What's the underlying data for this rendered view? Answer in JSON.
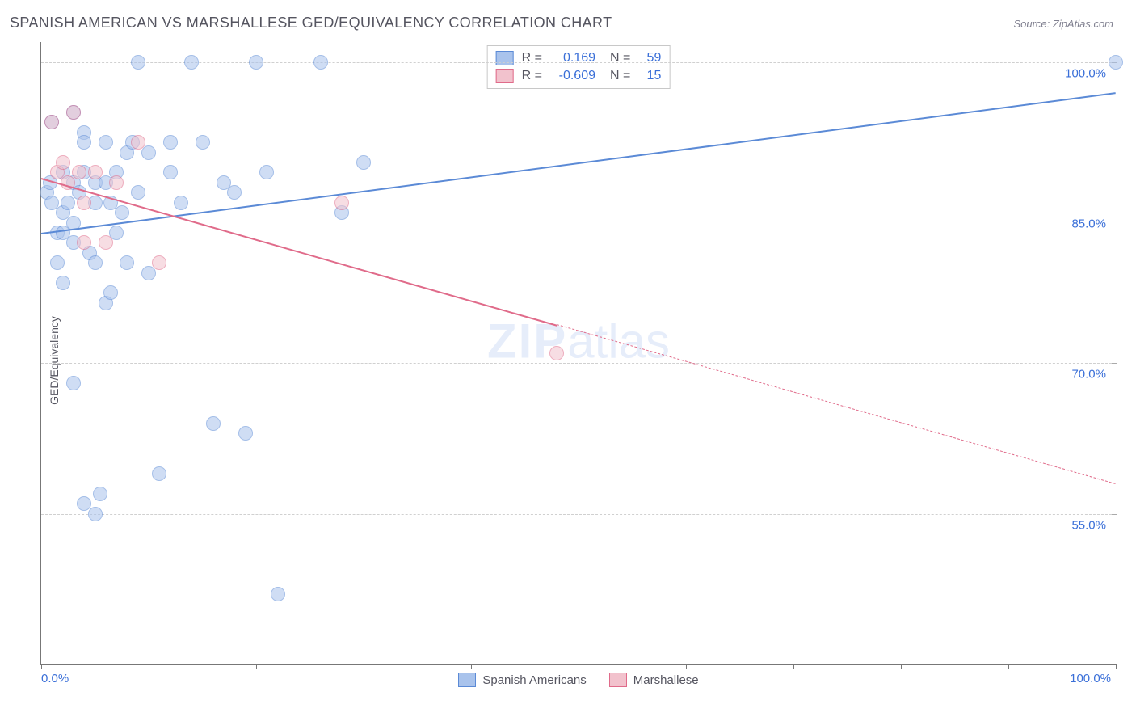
{
  "title": "SPANISH AMERICAN VS MARSHALLESE GED/EQUIVALENCY CORRELATION CHART",
  "source": "Source: ZipAtlas.com",
  "ylabel": "GED/Equivalency",
  "watermark_a": "ZIP",
  "watermark_b": "atlas",
  "chart": {
    "type": "scatter",
    "plot_bg": "#ffffff",
    "grid_color": "#d0d0d0",
    "axis_color": "#777777",
    "xlim": [
      0,
      100
    ],
    "ylim": [
      40,
      102
    ],
    "y_ticks": [
      55,
      70,
      85,
      100
    ],
    "y_tick_labels": [
      "55.0%",
      "70.0%",
      "85.0%",
      "100.0%"
    ],
    "x_ticks_minor_step": 10,
    "x_labels": [
      {
        "x": 0,
        "text": "0.0%",
        "align": "left"
      },
      {
        "x": 100,
        "text": "100.0%",
        "align": "right"
      }
    ],
    "ytick_color": "#3a6fd8",
    "marker_radius": 8,
    "marker_opacity": 0.55,
    "series": [
      {
        "name": "Spanish Americans",
        "color_fill": "#a9c3ec",
        "color_stroke": "#5b8ad6",
        "R": "0.169",
        "N": "59",
        "trend": {
          "y_at_x0": 83,
          "y_at_x100": 97,
          "solid_until_x": 100
        },
        "points": [
          [
            0.5,
            87
          ],
          [
            0.8,
            88
          ],
          [
            1,
            94
          ],
          [
            1,
            86
          ],
          [
            1.5,
            83
          ],
          [
            1.5,
            80
          ],
          [
            2,
            85
          ],
          [
            2,
            78
          ],
          [
            2,
            89
          ],
          [
            2.5,
            86
          ],
          [
            3,
            95
          ],
          [
            3,
            88
          ],
          [
            3,
            84
          ],
          [
            3,
            68
          ],
          [
            3.5,
            87
          ],
          [
            4,
            93
          ],
          [
            4,
            92
          ],
          [
            4,
            89
          ],
          [
            4.5,
            81
          ],
          [
            5,
            86
          ],
          [
            5,
            80
          ],
          [
            5,
            88
          ],
          [
            5.5,
            57
          ],
          [
            6,
            92
          ],
          [
            6,
            88
          ],
          [
            6.5,
            86
          ],
          [
            7,
            83
          ],
          [
            7,
            89
          ],
          [
            7.5,
            85
          ],
          [
            8,
            80
          ],
          [
            8,
            91
          ],
          [
            8.5,
            92
          ],
          [
            9,
            100
          ],
          [
            9,
            87
          ],
          [
            10,
            79
          ],
          [
            10,
            91
          ],
          [
            11,
            59
          ],
          [
            12,
            89
          ],
          [
            12,
            92
          ],
          [
            13,
            86
          ],
          [
            14,
            100
          ],
          [
            15,
            92
          ],
          [
            16,
            64
          ],
          [
            17,
            88
          ],
          [
            18,
            87
          ],
          [
            19,
            63
          ],
          [
            20,
            100
          ],
          [
            21,
            89
          ],
          [
            22,
            47
          ],
          [
            26,
            100
          ],
          [
            28,
            85
          ],
          [
            30,
            90
          ],
          [
            4,
            56
          ],
          [
            5,
            55
          ],
          [
            6,
            76
          ],
          [
            6.5,
            77
          ],
          [
            2,
            83
          ],
          [
            3,
            82
          ],
          [
            100,
            100
          ]
        ]
      },
      {
        "name": "Marshallese",
        "color_fill": "#f2c2cd",
        "color_stroke": "#e06b8a",
        "R": "-0.609",
        "N": "15",
        "trend": {
          "y_at_x0": 88.5,
          "y_at_x100": 58,
          "solid_until_x": 48
        },
        "points": [
          [
            1,
            94
          ],
          [
            1.5,
            89
          ],
          [
            2,
            90
          ],
          [
            2.5,
            88
          ],
          [
            3,
            95
          ],
          [
            3.5,
            89
          ],
          [
            4,
            86
          ],
          [
            4,
            82
          ],
          [
            5,
            89
          ],
          [
            6,
            82
          ],
          [
            7,
            88
          ],
          [
            9,
            92
          ],
          [
            11,
            80
          ],
          [
            28,
            86
          ],
          [
            48,
            71
          ]
        ]
      }
    ]
  },
  "legend_bottom": [
    {
      "label": "Spanish Americans",
      "fill": "#a9c3ec",
      "stroke": "#5b8ad6"
    },
    {
      "label": "Marshallese",
      "fill": "#f2c2cd",
      "stroke": "#e06b8a"
    }
  ],
  "stats_box_labels": {
    "R": "R =",
    "N": "N ="
  }
}
